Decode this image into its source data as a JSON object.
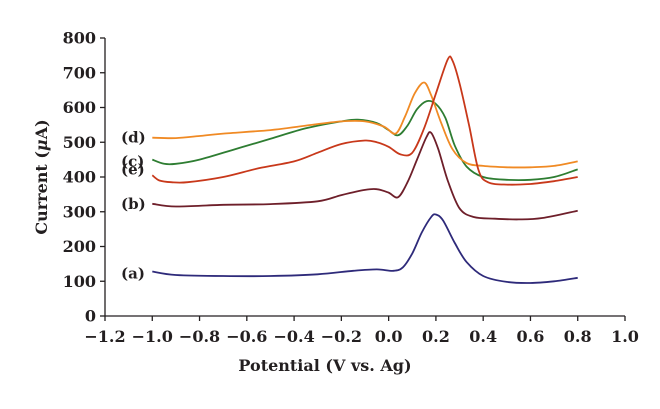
{
  "chart_data": {
    "type": "line",
    "title": "",
    "xlabel": "Potential (V vs. Ag)",
    "ylabel_parts": [
      "Current (",
      "μ",
      "A)"
    ],
    "xlim": [
      -1.2,
      1.0
    ],
    "ylim": [
      0,
      800
    ],
    "xticks": [
      -1.2,
      -1.0,
      -0.8,
      -0.6,
      -0.4,
      -0.2,
      0.0,
      0.2,
      0.4,
      0.6,
      0.8,
      1.0
    ],
    "xtick_labels": [
      "−1.2",
      "−1.0",
      "−0.8",
      "−0.6",
      "−0.4",
      "−0.2",
      "0.0",
      "0.2",
      "0.4",
      "0.6",
      "0.8",
      "1.0"
    ],
    "yticks": [
      0,
      100,
      200,
      300,
      400,
      500,
      600,
      700,
      800
    ],
    "ytick_labels": [
      "0",
      "100",
      "200",
      "300",
      "400",
      "500",
      "600",
      "700",
      "800"
    ],
    "grid": false,
    "series": [
      {
        "name": "(a)",
        "color": "#2e2a7a",
        "points": [
          [
            -1.0,
            128
          ],
          [
            -0.9,
            118
          ],
          [
            -0.7,
            115
          ],
          [
            -0.5,
            115
          ],
          [
            -0.3,
            120
          ],
          [
            -0.15,
            130
          ],
          [
            -0.05,
            134
          ],
          [
            0.02,
            130
          ],
          [
            0.06,
            140
          ],
          [
            0.1,
            180
          ],
          [
            0.14,
            240
          ],
          [
            0.18,
            285
          ],
          [
            0.2,
            292
          ],
          [
            0.23,
            275
          ],
          [
            0.28,
            210
          ],
          [
            0.33,
            155
          ],
          [
            0.4,
            115
          ],
          [
            0.5,
            98
          ],
          [
            0.6,
            95
          ],
          [
            0.7,
            100
          ],
          [
            0.8,
            110
          ]
        ]
      },
      {
        "name": "(b)",
        "color": "#6e1f2a",
        "points": [
          [
            -1.0,
            323
          ],
          [
            -0.9,
            315
          ],
          [
            -0.7,
            320
          ],
          [
            -0.5,
            322
          ],
          [
            -0.3,
            330
          ],
          [
            -0.2,
            348
          ],
          [
            -0.1,
            363
          ],
          [
            -0.05,
            365
          ],
          [
            0.0,
            355
          ],
          [
            0.04,
            342
          ],
          [
            0.08,
            385
          ],
          [
            0.12,
            450
          ],
          [
            0.16,
            515
          ],
          [
            0.18,
            527
          ],
          [
            0.21,
            480
          ],
          [
            0.25,
            390
          ],
          [
            0.3,
            310
          ],
          [
            0.36,
            285
          ],
          [
            0.45,
            280
          ],
          [
            0.55,
            278
          ],
          [
            0.65,
            282
          ],
          [
            0.8,
            303
          ]
        ]
      },
      {
        "name": "(c)",
        "color": "#2e7d32",
        "points": [
          [
            -1.0,
            450
          ],
          [
            -0.95,
            438
          ],
          [
            -0.9,
            438
          ],
          [
            -0.8,
            450
          ],
          [
            -0.65,
            480
          ],
          [
            -0.5,
            510
          ],
          [
            -0.35,
            540
          ],
          [
            -0.2,
            560
          ],
          [
            -0.13,
            565
          ],
          [
            -0.05,
            555
          ],
          [
            0.0,
            535
          ],
          [
            0.04,
            520
          ],
          [
            0.08,
            548
          ],
          [
            0.12,
            595
          ],
          [
            0.16,
            618
          ],
          [
            0.2,
            610
          ],
          [
            0.24,
            570
          ],
          [
            0.28,
            490
          ],
          [
            0.33,
            430
          ],
          [
            0.4,
            400
          ],
          [
            0.5,
            392
          ],
          [
            0.6,
            392
          ],
          [
            0.7,
            400
          ],
          [
            0.8,
            422
          ]
        ]
      },
      {
        "name": "(d)",
        "color": "#f08a24",
        "points": [
          [
            -1.0,
            513
          ],
          [
            -0.9,
            512
          ],
          [
            -0.8,
            518
          ],
          [
            -0.7,
            525
          ],
          [
            -0.5,
            535
          ],
          [
            -0.35,
            548
          ],
          [
            -0.2,
            560
          ],
          [
            -0.1,
            560
          ],
          [
            -0.02,
            545
          ],
          [
            0.03,
            525
          ],
          [
            0.07,
            575
          ],
          [
            0.11,
            640
          ],
          [
            0.15,
            672
          ],
          [
            0.18,
            635
          ],
          [
            0.22,
            560
          ],
          [
            0.27,
            480
          ],
          [
            0.33,
            440
          ],
          [
            0.4,
            432
          ],
          [
            0.5,
            428
          ],
          [
            0.6,
            428
          ],
          [
            0.7,
            432
          ],
          [
            0.8,
            445
          ]
        ]
      },
      {
        "name": "(e)",
        "color": "#c8381a",
        "points": [
          [
            -1.0,
            405
          ],
          [
            -0.97,
            390
          ],
          [
            -0.92,
            385
          ],
          [
            -0.85,
            385
          ],
          [
            -0.7,
            400
          ],
          [
            -0.55,
            425
          ],
          [
            -0.4,
            445
          ],
          [
            -0.3,
            470
          ],
          [
            -0.2,
            495
          ],
          [
            -0.1,
            505
          ],
          [
            -0.05,
            500
          ],
          [
            0.0,
            487
          ],
          [
            0.05,
            465
          ],
          [
            0.1,
            470
          ],
          [
            0.15,
            540
          ],
          [
            0.2,
            640
          ],
          [
            0.25,
            738
          ],
          [
            0.27,
            735
          ],
          [
            0.3,
            670
          ],
          [
            0.34,
            550
          ],
          [
            0.38,
            420
          ],
          [
            0.42,
            385
          ],
          [
            0.5,
            378
          ],
          [
            0.6,
            380
          ],
          [
            0.7,
            388
          ],
          [
            0.8,
            400
          ]
        ]
      }
    ],
    "series_label_placement": "left of each curve"
  }
}
